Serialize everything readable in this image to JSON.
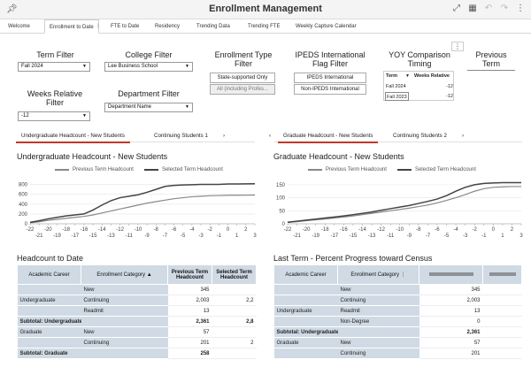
{
  "app": {
    "title": "Enrollment Management",
    "toolbar_icons": [
      "pin-icon",
      "expand-icon",
      "grid-icon",
      "undo-icon",
      "redo-icon",
      "more-icon"
    ]
  },
  "tabs": [
    "Welcome",
    "Enrollment to Date",
    "FTE to Date",
    "Residency",
    "Trending Data",
    "Trending FTE",
    "Weekly Capture Calendar"
  ],
  "filters": {
    "term": {
      "label": "Term Filter",
      "value": "Fall 2024"
    },
    "college": {
      "label": "College Filter",
      "value": "Lee Business School"
    },
    "enrollment_type": {
      "label_line1": "Enrollment Type",
      "label_line2": "Filter",
      "options": [
        "State-supported Only",
        "All (including Profes..."
      ]
    },
    "ipeds": {
      "label_line1": "IPEDS International",
      "label_line2": "Flag Filter",
      "options": [
        "IPEDS International",
        "Non-IPEDS International"
      ]
    },
    "yoy": {
      "label_line1": "YOY Comparison",
      "label_line2": "Timing",
      "col1": "Term",
      "col2": "Weeks Relative",
      "rows": [
        {
          "term": "Fall 2024",
          "val": "-12"
        },
        {
          "term": "Fall 2023",
          "val": "-12"
        }
      ]
    },
    "previous_term": {
      "label_line1": "Previous",
      "label_line2": "Term"
    },
    "weeks": {
      "label_line1": "Weeks Relative",
      "label_line2": "Filter",
      "value": "-12"
    },
    "department": {
      "label": "Department Filter",
      "value": "Department Name"
    }
  },
  "chart_tabs_left": [
    "Undergraduate Headcount - New Students",
    "Continuing Students 1"
  ],
  "chart_tabs_right": [
    "Graduate Headcount - New Students",
    "Continuing Students 2"
  ],
  "chart_data": [
    {
      "type": "line",
      "title": "Undergraduate Headcount - New Students",
      "x": [
        -22,
        -21,
        -20,
        -19,
        -18,
        -17,
        -16,
        -15,
        -14,
        -13,
        -12,
        -11,
        -10,
        -9,
        -8,
        -7,
        -6,
        -5,
        -4,
        -3,
        -2,
        -1,
        0,
        1,
        2,
        3
      ],
      "xticks": [
        -22,
        -21,
        -20,
        -19,
        -18,
        -17,
        -16,
        -15,
        -14,
        -13,
        -12,
        -11,
        -10,
        -9,
        -8,
        -7,
        -6,
        -5,
        -4,
        -3,
        -2,
        -1,
        0,
        1,
        2,
        3
      ],
      "xtick_labels_lower": [
        -21,
        -19,
        -17,
        -15,
        -13,
        -11,
        -9,
        -7,
        -5,
        -3,
        -1,
        1,
        3
      ],
      "xtick_labels_upper": [
        -22,
        -20,
        -18,
        -16,
        -14,
        -12,
        -10,
        -8,
        -6,
        -4,
        -2,
        0,
        2
      ],
      "ylim": [
        0,
        900
      ],
      "yticks": [
        0,
        200,
        400,
        600,
        800
      ],
      "series": [
        {
          "name": "Previous Term Headcount",
          "color": "#888888",
          "values": [
            20,
            40,
            70,
            90,
            110,
            130,
            150,
            180,
            220,
            260,
            300,
            340,
            380,
            420,
            450,
            480,
            510,
            530,
            550,
            560,
            570,
            575,
            580,
            580,
            582,
            585
          ]
        },
        {
          "name": "Selected Term Headcount",
          "color": "#444444",
          "values": [
            30,
            60,
            100,
            130,
            160,
            180,
            200,
            280,
            380,
            470,
            530,
            560,
            590,
            640,
            700,
            760,
            780,
            790,
            795,
            800,
            800,
            800,
            810,
            810,
            812,
            815
          ]
        }
      ]
    },
    {
      "type": "line",
      "title": "Graduate Headcount - New Students",
      "x": [
        -22,
        -21,
        -20,
        -19,
        -18,
        -17,
        -16,
        -15,
        -14,
        -13,
        -12,
        -11,
        -10,
        -9,
        -8,
        -7,
        -6,
        -5,
        -4,
        -3,
        -2,
        -1,
        0,
        1,
        2,
        3
      ],
      "xtick_labels_lower": [
        -21,
        -19,
        -17,
        -15,
        -13,
        -11,
        -9,
        -7,
        -5,
        -3,
        -1,
        1,
        3
      ],
      "xtick_labels_upper": [
        -22,
        -20,
        -18,
        -16,
        -14,
        -12,
        -10,
        -8,
        -6,
        -4,
        -2,
        0,
        2
      ],
      "ylim": [
        0,
        170
      ],
      "yticks": [
        0,
        50,
        100,
        150
      ],
      "series": [
        {
          "name": "Previous Term Headcount",
          "color": "#888888",
          "values": [
            5,
            8,
            12,
            15,
            18,
            22,
            26,
            30,
            35,
            40,
            45,
            50,
            55,
            60,
            66,
            72,
            80,
            90,
            100,
            112,
            125,
            135,
            140,
            142,
            143,
            143
          ]
        },
        {
          "name": "Selected Term Headcount",
          "color": "#444444",
          "values": [
            6,
            10,
            14,
            18,
            22,
            26,
            30,
            35,
            40,
            45,
            52,
            58,
            64,
            70,
            78,
            86,
            95,
            108,
            125,
            140,
            150,
            155,
            157,
            158,
            158,
            158
          ]
        }
      ]
    }
  ],
  "left_table": {
    "section_title": "Headcount to Date",
    "headers": [
      "Academic Career",
      "Enrollment Category",
      "Previous Term Headcount",
      "Selected Term Headcount"
    ],
    "rows": [
      {
        "career": "",
        "category": "New",
        "prev": "345",
        "sel": "",
        "bold": false
      },
      {
        "career": "Undergraduate",
        "category": "Continuing",
        "prev": "2,003",
        "sel": "2,2",
        "bold": false
      },
      {
        "career": "",
        "category": "Readmit",
        "prev": "13",
        "sel": "",
        "bold": false
      },
      {
        "career": "Subtotal: Undergraduate",
        "category": "",
        "prev": "2,361",
        "sel": "2,8",
        "bold": true
      },
      {
        "career": "Graduate",
        "category": "New",
        "prev": "57",
        "sel": "",
        "bold": false
      },
      {
        "career": "",
        "category": "Continuing",
        "prev": "201",
        "sel": "2",
        "bold": false
      },
      {
        "career": "Subtotal: Graduate",
        "category": "",
        "prev": "258",
        "sel": "",
        "bold": true
      }
    ]
  },
  "right_table": {
    "section_title": "Last Term - Percent Progress toward Census",
    "headers": [
      "Academic Career",
      "Enrollment Category",
      "",
      ""
    ],
    "rows": [
      {
        "career": "",
        "category": "New",
        "val": "345",
        "bold": false
      },
      {
        "career": "",
        "category": "Continuing",
        "val": "2,003",
        "bold": false
      },
      {
        "career": "Undergraduate",
        "category": "Readmit",
        "val": "13",
        "bold": false
      },
      {
        "career": "",
        "category": "Non-Degree",
        "val": "0",
        "bold": false
      },
      {
        "career": "Subtotal: Undergraduate",
        "category": "",
        "val": "2,361",
        "bold": true
      },
      {
        "career": "Graduate",
        "category": "New",
        "val": "57",
        "bold": false
      },
      {
        "career": "",
        "category": "Continuing",
        "val": "201",
        "bold": false
      }
    ]
  }
}
